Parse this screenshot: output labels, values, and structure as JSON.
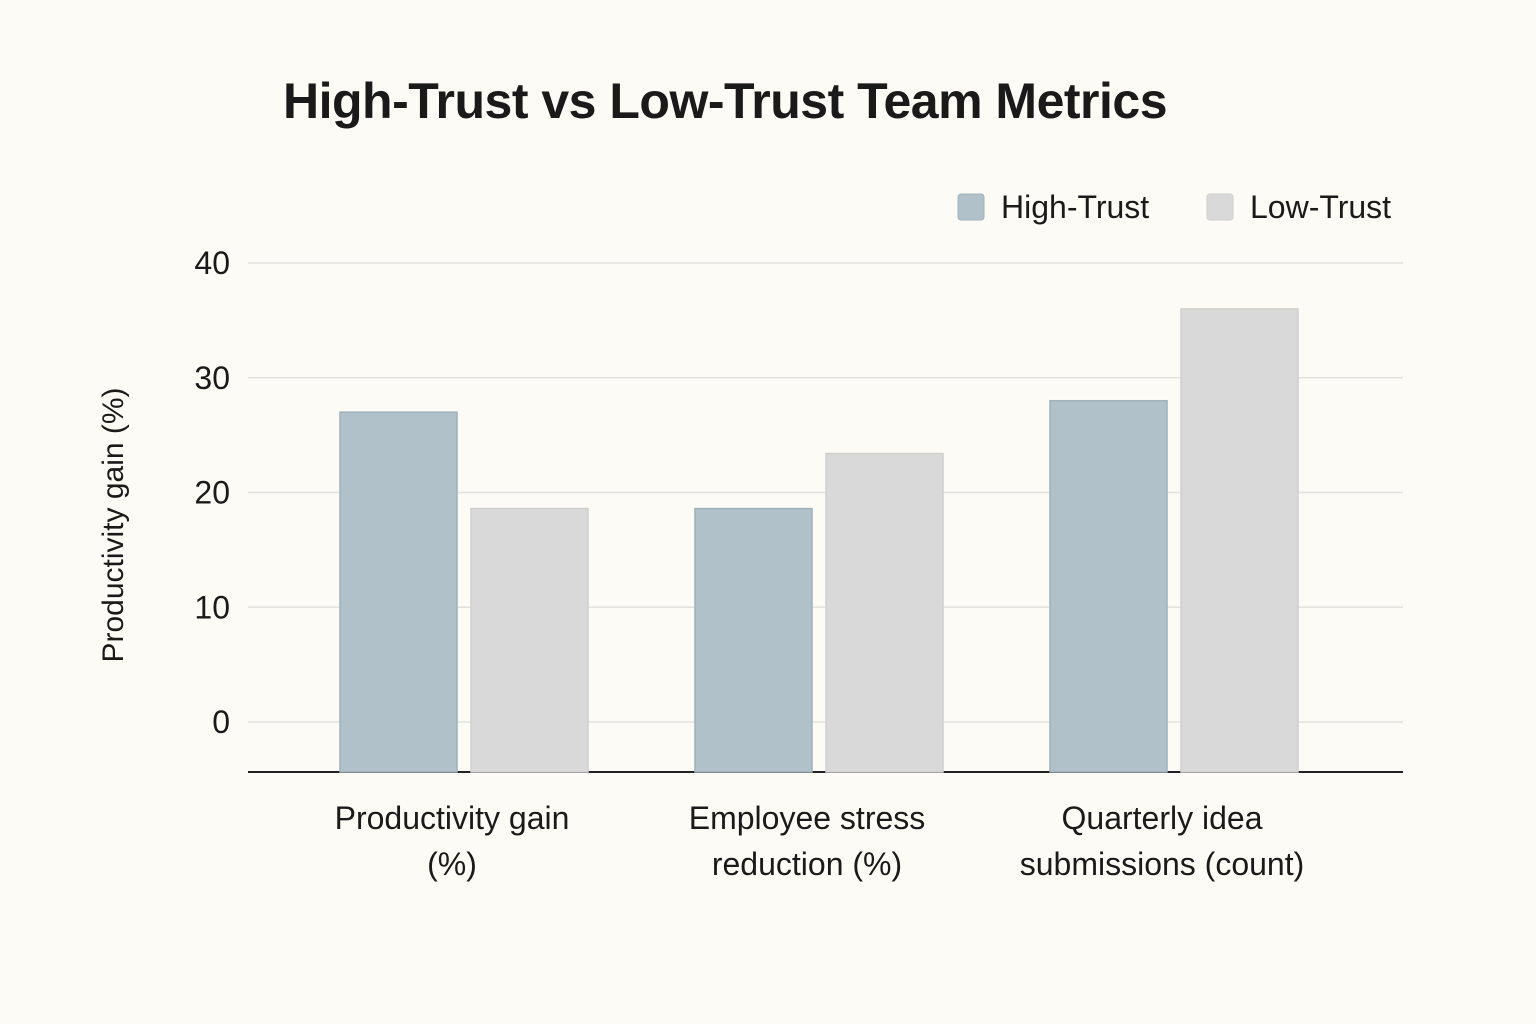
{
  "chart_data": {
    "type": "bar",
    "title": "High-Trust vs Low-Trust Team Metrics",
    "xlabel": "",
    "ylabel": "Productivity gain (%)",
    "ylim": [
      0,
      40
    ],
    "yticks": [
      0,
      10,
      20,
      30,
      40
    ],
    "grid": true,
    "legend_position": "top-right",
    "categories": [
      [
        "Productivity gain",
        "(%)"
      ],
      [
        "Employee stress",
        "reduction (%)"
      ],
      [
        "Quarterly idea",
        "submissions (count)"
      ]
    ],
    "series": [
      {
        "name": "High-Trust",
        "color": "#b0c1c9",
        "values": [
          27,
          18.6,
          28
        ]
      },
      {
        "name": "Low-Trust",
        "color": "#d9d9d9",
        "values": [
          18.6,
          23.4,
          36
        ]
      }
    ]
  }
}
